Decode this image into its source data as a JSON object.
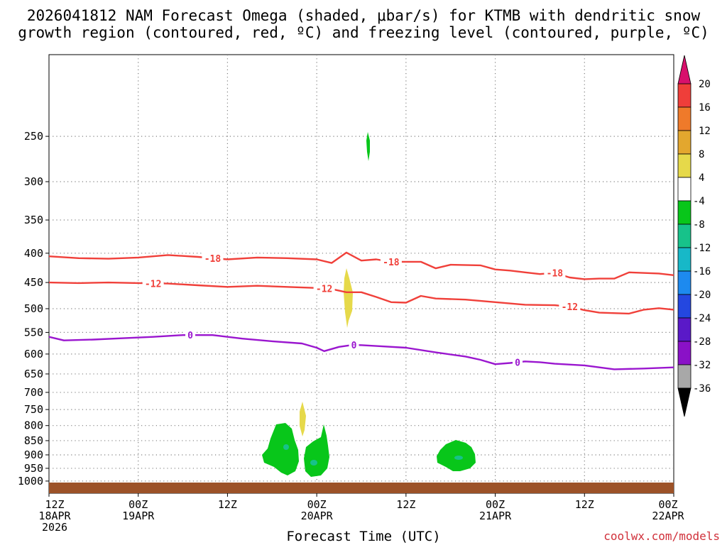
{
  "title": {
    "line1": "2026041812 NAM Forecast Omega (shaded, μbar/s) for KTMB with dendritic snow",
    "line2": "growth region (contoured, red, ºC) and freezing level (contoured, purple, ºC)"
  },
  "xlabel": "Forecast Time (UTC)",
  "credit": "coolwx.com/models",
  "chart_data": {
    "type": "time-height cross section",
    "x_unit": "forecast hour from 2026041812",
    "xlim": [
      0,
      84
    ],
    "y_unit": "pressure (hPa)",
    "ylim": [
      1050,
      180
    ],
    "y_ticks": [
      250,
      300,
      350,
      400,
      450,
      500,
      550,
      600,
      650,
      700,
      750,
      800,
      850,
      900,
      950,
      1000
    ],
    "x_ticks": [
      {
        "hour": 0,
        "top": "12Z",
        "mid": "18APR",
        "bottom": "2026"
      },
      {
        "hour": 12,
        "top": "00Z",
        "mid": "19APR",
        "bottom": ""
      },
      {
        "hour": 24,
        "top": "12Z",
        "mid": "",
        "bottom": ""
      },
      {
        "hour": 36,
        "top": "00Z",
        "mid": "20APR",
        "bottom": ""
      },
      {
        "hour": 48,
        "top": "12Z",
        "mid": "",
        "bottom": ""
      },
      {
        "hour": 60,
        "top": "00Z",
        "mid": "21APR",
        "bottom": ""
      },
      {
        "hour": 72,
        "top": "12Z",
        "mid": "",
        "bottom": ""
      },
      {
        "hour": 84,
        "top": "00Z",
        "mid": "22APR",
        "bottom": ""
      }
    ],
    "colorbar": {
      "levels": [
        "20",
        "16",
        "12",
        "8",
        "4",
        "-4",
        "-8",
        "-12",
        "-16",
        "-20",
        "-24",
        "-28",
        "-32",
        "-36"
      ],
      "colors": [
        "#d8106c",
        "#ef3e3a",
        "#ef7a2a",
        "#e3a72e",
        "#e6d94a",
        "#ffffff",
        "#08c61a",
        "#17c28a",
        "#17b8c8",
        "#1d8aef",
        "#2447e0",
        "#5a19c8",
        "#8a11c7",
        "#a8a8a8",
        "#000000"
      ]
    },
    "contours": [
      {
        "name": "dgz-top",
        "label": "-18",
        "color": "#f0403a",
        "label_positions": [
          22,
          46,
          68
        ],
        "points": [
          [
            0,
            405
          ],
          [
            4,
            408
          ],
          [
            8,
            409
          ],
          [
            12,
            407
          ],
          [
            16,
            403
          ],
          [
            20,
            406
          ],
          [
            24,
            410
          ],
          [
            28,
            407
          ],
          [
            32,
            408
          ],
          [
            36,
            410
          ],
          [
            38,
            416
          ],
          [
            40,
            399
          ],
          [
            42,
            412
          ],
          [
            44,
            410
          ],
          [
            46,
            414
          ],
          [
            50,
            414
          ],
          [
            52,
            425
          ],
          [
            54,
            419
          ],
          [
            58,
            420
          ],
          [
            60,
            427
          ],
          [
            62,
            429
          ],
          [
            64,
            432
          ],
          [
            66,
            435
          ],
          [
            68,
            433
          ],
          [
            70,
            441
          ],
          [
            72,
            444
          ],
          [
            74,
            443
          ],
          [
            76,
            443
          ],
          [
            78,
            432
          ],
          [
            82,
            434
          ],
          [
            84,
            437
          ]
        ]
      },
      {
        "name": "dgz-bottom",
        "label": "-12",
        "color": "#f0403a",
        "label_positions": [
          14,
          37,
          70
        ],
        "points": [
          [
            0,
            450
          ],
          [
            4,
            451
          ],
          [
            8,
            450
          ],
          [
            12,
            451
          ],
          [
            16,
            452
          ],
          [
            20,
            455
          ],
          [
            24,
            458
          ],
          [
            28,
            456
          ],
          [
            32,
            458
          ],
          [
            36,
            460
          ],
          [
            38,
            462
          ],
          [
            40,
            468
          ],
          [
            42,
            468
          ],
          [
            44,
            477
          ],
          [
            46,
            487
          ],
          [
            48,
            488
          ],
          [
            50,
            475
          ],
          [
            52,
            480
          ],
          [
            56,
            482
          ],
          [
            60,
            487
          ],
          [
            64,
            492
          ],
          [
            68,
            493
          ],
          [
            70,
            496
          ],
          [
            72,
            503
          ],
          [
            74,
            508
          ],
          [
            78,
            510
          ],
          [
            80,
            502
          ],
          [
            82,
            499
          ],
          [
            84,
            502
          ]
        ]
      },
      {
        "name": "freezing-level",
        "label": "0",
        "color": "#9a16cf",
        "label_positions": [
          19,
          41,
          63
        ],
        "points": [
          [
            0,
            560
          ],
          [
            2,
            568
          ],
          [
            6,
            566
          ],
          [
            10,
            563
          ],
          [
            14,
            560
          ],
          [
            18,
            556
          ],
          [
            22,
            556
          ],
          [
            26,
            564
          ],
          [
            30,
            570
          ],
          [
            34,
            575
          ],
          [
            36,
            585
          ],
          [
            37,
            593
          ],
          [
            39,
            583
          ],
          [
            41,
            578
          ],
          [
            44,
            581
          ],
          [
            48,
            585
          ],
          [
            52,
            596
          ],
          [
            56,
            606
          ],
          [
            58,
            614
          ],
          [
            60,
            625
          ],
          [
            62,
            622
          ],
          [
            64,
            618
          ],
          [
            66,
            620
          ],
          [
            68,
            624
          ],
          [
            72,
            628
          ],
          [
            76,
            638
          ],
          [
            80,
            636
          ],
          [
            84,
            633
          ]
        ]
      }
    ],
    "omega_regions": [
      {
        "name": "omega-upper-cell",
        "value_bin": "-4 to -8"
      },
      {
        "name": "omega-positive-cell",
        "value_bin": "4 to 8"
      },
      {
        "name": "omega-low-yellow",
        "value_bin": "4 to 8"
      },
      {
        "name": "omega-cell-1",
        "value_bin": "-4 to -8"
      },
      {
        "name": "omega-cell-2",
        "value_bin": "-4 to -8"
      },
      {
        "name": "omega-cell-3",
        "value_bin": "-4 to -8"
      }
    ]
  }
}
